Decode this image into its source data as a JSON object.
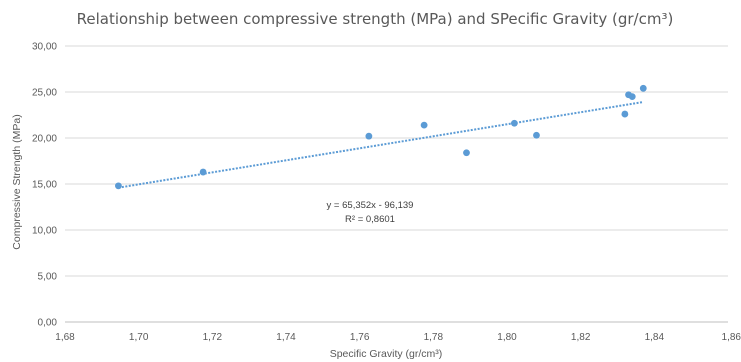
{
  "chart_data": {
    "type": "scatter",
    "title": "Relationship between compressive strength (MPa) and SPecific Gravity (gr/cm³)",
    "xlabel": "Specific Gravity (gr/cm³)",
    "ylabel": "Compressive Strength (MPa)",
    "xlim": [
      1.68,
      1.86
    ],
    "ylim": [
      0,
      30
    ],
    "x_ticks": [
      "1,68",
      "1,70",
      "1,72",
      "1,74",
      "1,76",
      "1,78",
      "1,80",
      "1,82",
      "1,84",
      "1,86"
    ],
    "y_ticks": [
      "0,00",
      "5,00",
      "10,00",
      "15,00",
      "20,00",
      "25,00",
      "30,00"
    ],
    "grid": "horizontal",
    "legend": "none",
    "marker_color": "#5b9bd5",
    "trendline_color": "#5b9bd5",
    "points": [
      {
        "x": 1.6945,
        "y": 14.8
      },
      {
        "x": 1.7175,
        "y": 16.3
      },
      {
        "x": 1.7625,
        "y": 20.2
      },
      {
        "x": 1.7775,
        "y": 21.4
      },
      {
        "x": 1.789,
        "y": 18.4
      },
      {
        "x": 1.802,
        "y": 21.6
      },
      {
        "x": 1.808,
        "y": 20.3
      },
      {
        "x": 1.832,
        "y": 22.6
      },
      {
        "x": 1.833,
        "y": 24.7
      },
      {
        "x": 1.834,
        "y": 24.5
      },
      {
        "x": 1.837,
        "y": 25.4
      }
    ],
    "trendline": {
      "type": "linear",
      "slope": 65.352,
      "intercept": -96.139,
      "x_range": [
        1.6945,
        1.837
      ],
      "equation_label": "y = 65,352x - 96,139",
      "r2_label": "R² = 0,8601"
    }
  }
}
